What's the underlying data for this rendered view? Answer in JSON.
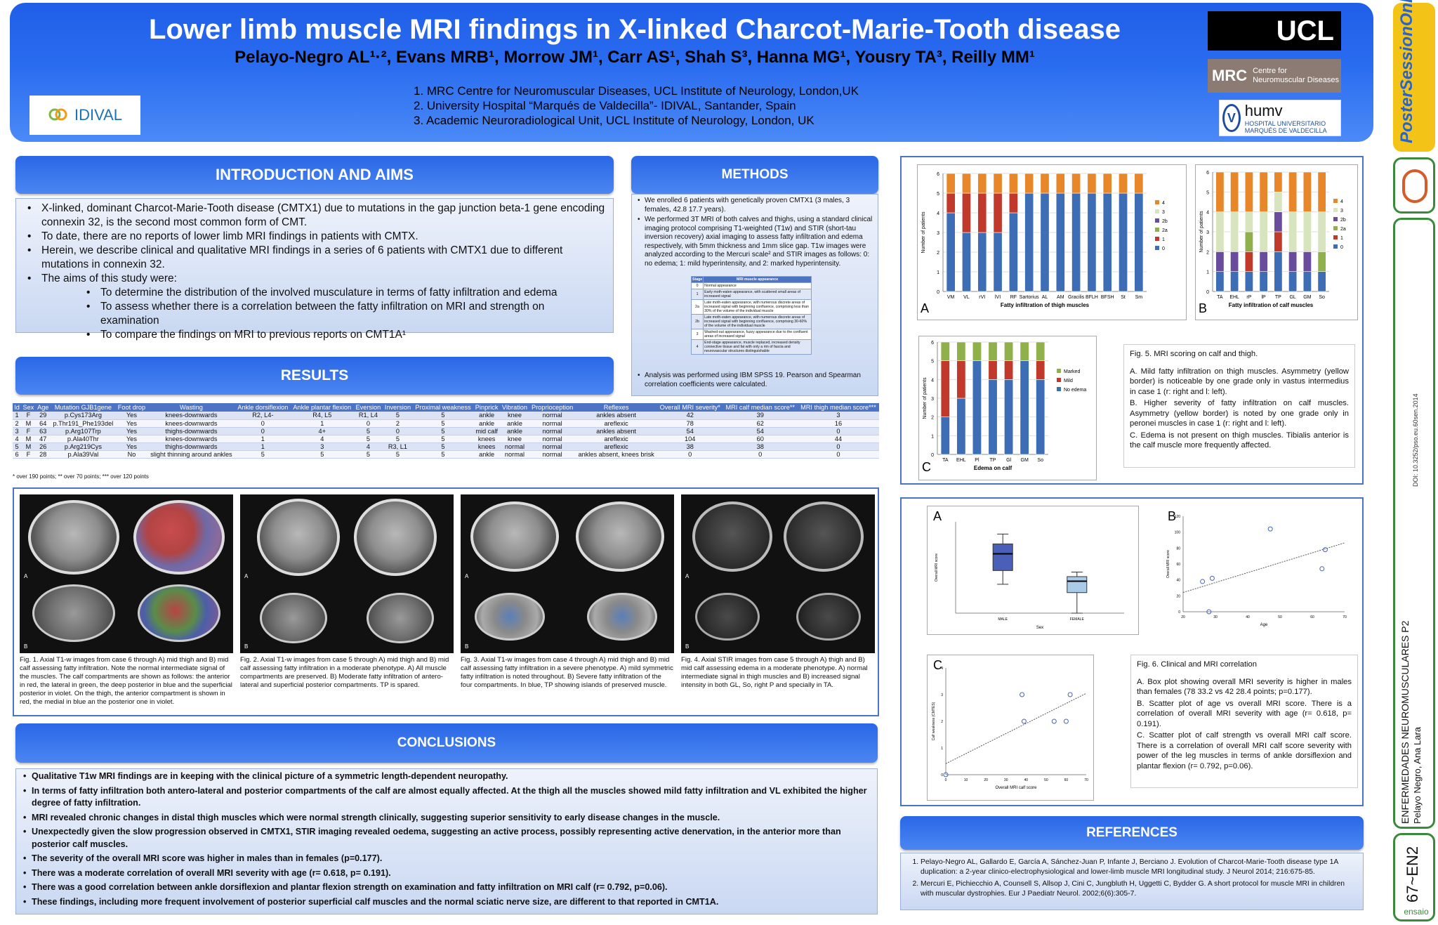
{
  "header": {
    "title": "Lower limb muscle MRI findings in X-linked Charcot-Marie-Tooth disease",
    "authors": "Pelayo-Negro AL¹·², Evans MRB¹, Morrow JM¹, Carr AS¹, Shah S³, Hanna MG¹, Yousry TA³, Reilly MM¹",
    "affiliations": [
      "1.  MRC Centre for Neuromuscular Diseases, UCL Institute of Neurology, London,UK",
      "2.  University Hospital “Marqués de Valdecilla”- IDIVAL, Santander, Spain",
      "3.  Academic Neuroradiological Unit, UCL Institute of Neurology, London, UK"
    ],
    "logo_idival": "IDIVAL",
    "logo_ucl": "UCL",
    "logo_mrc": "MRC",
    "logo_mrc_sub": "Centre for Neuromuscular Diseases",
    "logo_humv": "humv",
    "logo_humv_sub": "HOSPITAL UNIVERSITARIO MARQUÉS DE VALDECILLA"
  },
  "rail": {
    "brand": "PosterSessionOnline",
    "doi": "DOI: 10.3252/pso.eu.60sen.2014",
    "session": "ENFERMEDADES NEUROMUSCULARES P2",
    "author": "Pelayo Negro, Ana Lara",
    "code": "67~EN2",
    "badge": "ensaio"
  },
  "intro": {
    "heading": "INTRODUCTION AND AIMS",
    "bullets": [
      "X-linked, dominant Charcot-Marie-Tooth disease (CMTX1) due to mutations in the gap junction beta-1 gene encoding connexin 32, is the second most common form of CMT.",
      "To date, there are no reports of lower limb MRI findings in patients with CMTX.",
      "Herein, we describe clinical and qualitative MRI findings in a series of 6 patients  with CMTX1 due to different mutations in connexin 32.",
      "The aims of this study were:"
    ],
    "aims": [
      "To determine the distribution of the involved musculature in terms of fatty infiltration and edema",
      "To assess whether there is a correlation between the fatty infiltration on MRI and strength  on examination",
      "To compare the findings on MRI to previous reports on CMT1A¹"
    ]
  },
  "methods": {
    "heading": "METHODS",
    "p1": "We enrolled 6 patients with genetically proven CMTX1 (3 males, 3 females, 42.8  17.7 years).",
    "p2": "We performed 3T MRI of both calves and thighs, using a standard clinical imaging protocol comprising T1-weighted (T1w) and STIR (short-tau inversion recovery) axial imaging to assess fatty infiltration and edema respectively, with 5mm thickness and 1mm slice gap.  T1w images were analyzed according to the Mercuri scale² and STIR images as follows: 0: no edema; 1: mild hyperintensity, and  2: marked hyperintensity.",
    "table_head": [
      "Stage",
      "MRI muscle appearance"
    ],
    "table_rows": [
      [
        "0",
        "Normal appearance"
      ],
      [
        "1",
        "Early moth-eaten appearance, with scattered small areas of increased signal"
      ],
      [
        "2a",
        "Late moth-eaten appearance, with numerous discrete areas of increased signal with beginning confluence, comprising less than 30% of the volume of the individual muscle"
      ],
      [
        "2b",
        "Late moth-eaten appearance, with numerous discrete areas of increased signal with beginning confluence, comprising 30-60% of the volume of the individual muscle"
      ],
      [
        "3",
        "Washed-out appearance, fuzzy appearance due to the confluent areas of increased signal"
      ],
      [
        "4",
        "End-stage appearance, muscle replaced, increased density connective tissue and fat with only a rim of fascia and neurovascular structures distinguishable"
      ]
    ],
    "p3": "Analysis was performed using IBM SPSS 19. Pearson and Spearman correlation coefficients were calculated."
  },
  "results": {
    "heading": "RESULTS",
    "columns": [
      "Id",
      "Sex",
      "Age",
      "Mutation GJB1gene",
      "Foot drop",
      "Wasting",
      "Ankle dorsiflexion",
      "Ankle plantar flexion",
      "Eversion",
      "Inversion",
      "Proximal weakness",
      "Pinprick",
      "Vibration",
      "Proprioception",
      "Reflexes",
      "Overall MRI severity*",
      "MRI calf median score**",
      "MRI thigh median score***"
    ],
    "rows": [
      [
        "1",
        "F",
        "29",
        "p.Cys173Arg",
        "Yes",
        "knees-downwards",
        "R2, L4-",
        "R4, L5",
        "R1, L4",
        "5",
        "5",
        "ankle",
        "knee",
        "normal",
        "ankles absent",
        "42",
        "39",
        "3"
      ],
      [
        "2",
        "M",
        "64",
        "p.Thr191_Phe193del",
        "Yes",
        "knees-downwards",
        "0",
        "1",
        "0",
        "2",
        "5",
        "ankle",
        "ankle",
        "normal",
        "areflexic",
        "78",
        "62",
        "16"
      ],
      [
        "3",
        "F",
        "63",
        "p.Arg107Trp",
        "Yes",
        "thighs-downwards",
        "0",
        "4+",
        "5",
        "0",
        "5",
        "mid calf",
        "ankle",
        "normal",
        "ankles absent",
        "54",
        "54",
        "0"
      ],
      [
        "4",
        "M",
        "47",
        "p.Ala40Thr",
        "Yes",
        "knees-downwards",
        "1",
        "4",
        "5",
        "5",
        "5",
        "knees",
        "knee",
        "normal",
        "areflexic",
        "104",
        "60",
        "44"
      ],
      [
        "5",
        "M",
        "26",
        "p.Arg219Cys",
        "Yes",
        "thighs-downwards",
        "1",
        "3",
        "4",
        "R3, L1",
        "5",
        "knees",
        "normal",
        "normal",
        "areflexic",
        "38",
        "38",
        "0"
      ],
      [
        "6",
        "F",
        "28",
        "p.Ala39Val",
        "No",
        "slight thinning around ankles",
        "5",
        "5",
        "5",
        "5",
        "5",
        "ankle",
        "normal",
        "normal",
        "ankles absent, knees brisk",
        "0",
        "0",
        "0"
      ]
    ],
    "footnote": "* over 190 points; ** over 70 points; *** over 120 points"
  },
  "figures": {
    "fig1": "Fig. 1. Axial T1-w images from case 6 through A) mid thigh and B) mid calf assessing fatty infiltration. Note the normal intermediate signal of the muscles. The calf compartments are shown as follows: the anterior in red, the lateral in green, the deep posterior in blue and the superficial posterior in violet. On the thigh, the anterior compartment is shown in red, the medial in blue an the posterior one in violet.",
    "fig2": "Fig. 2. Axial T1-w images from case 5 through A) mid thigh and B) mid calf assessing fatty infiltration in a moderate phenotype. A) All muscle compartments are preserved. B) Moderate fatty infiltration of antero-lateral and superficial posterior compartments. TP is spared.",
    "fig3": "Fig. 3. Axial T1-w images from case 4 through A) mid thigh and B) mid calf assessing fatty infiltration in a severe phenotype. A) mild symmetric fatty infiltration is noted throughout. B) Severe fatty infiltration of the four compartments. In blue, TP showing islands of preserved muscle.",
    "fig4": "Fig. 4. Axial STIR images from case 5 through A) thigh and B) mid calf assessing edema in a moderate phenotype. A) normal intermediate signal in thigh muscles and B) increased signal intensity in both GL, So, right P and specially in TA.",
    "label_a": "A",
    "label_b": "B"
  },
  "conclusions": {
    "heading": "CONCLUSIONS",
    "items": [
      "Qualitative T1w MRI findings are in keeping with the clinical picture of a symmetric length-dependent neuropathy.",
      "In terms of fatty infiltration both antero-lateral and posterior compartments of the calf are almost equally affected. At the thigh all the muscles showed mild fatty infiltration and VL  exhibited the higher degree of fatty infiltration.",
      "MRI revealed chronic changes in distal thigh muscles which were normal strength clinically, suggesting superior sensitivity to early disease changes in the muscle.",
      "Unexpectedly given the slow progression observed in CMTX1, STIR imaging revealed oedema, suggesting an active process, possibly representing active denervation, in the anterior more than posterior calf muscles.",
      "The severity of the overall MRI score was  higher in males than in females (p=0.177).",
      "There was a moderate correlation of overall MRI severity with age (r= 0.618, p= 0.191).",
      "There was a good correlation between ankle dorsiflexion and plantar flexion strength on examination and fatty infiltration on MRI calf (r= 0.792, p=0.06).",
      "These findings, including more frequent involvement of posterior superficial  calf muscles and the normal sciatic nerve size, are different to that reported in CMT1A."
    ]
  },
  "fig5": {
    "caption_title": "Fig. 5. MRI scoring on calf and thigh.",
    "caption_lines": [
      "A. Mild fatty infiltration on thigh muscles. Asymmetry (yellow border) is noticeable by one grade only in vastus  intermedius in case 1 (r: right and l: left).",
      "B. Higher severity of fatty infiltration on calf muscles. Asymmetry (yellow border) is noted by one grade only in peronei muscles in case 1 (r: right and l: left).",
      "C. Edema is not present on thigh muscles. Tibialis anterior is the calf muscle more frequently affected."
    ],
    "label_a": "A",
    "label_b": "B",
    "label_c": "C"
  },
  "fig6": {
    "caption_title": "Fig. 6. Clinical  and MRI correlation",
    "caption_lines": [
      "A. Box plot showing overall MRI severity is higher in males than females (78  33.2 vs 42  28.4 points; p=0.177).",
      "B. Scatter plot of age vs overall MRI score.  There is a correlation of overall MRI severity with age (r= 0.618, p= 0.191).",
      "C. Scatter plot of calf strength vs overall MRI calf score. There is a correlation of overall MRI calf score severity with power of the leg muscles in terms of ankle dorsiflexion and plantar flexion (r= 0.792, p=0.06)."
    ],
    "label_a": "A",
    "label_b": "B",
    "label_c": "C"
  },
  "references": {
    "heading": "REFERENCES",
    "items": [
      "Pelayo-Negro AL, Gallardo E, García A, Sánchez-Juan P, Infante J, Berciano J. Evolution of Charcot-Marie-Tooth disease type 1A duplication: a 2-year clinico-electrophysiological and lower-limb muscle MRI longitudinal study. J Neurol 2014; 216:675-85.",
      "Mercuri E, Pichiecchio A, Counsell S, Allsop J, Cini C, Jungbluth H, Uggetti C, Bydder G. A short protocol for muscle MRI in children with muscular dystrophies. Eur J Paediatr Neurol. 2002;6(6):305-7."
    ]
  },
  "chart_data": [
    {
      "type": "bar",
      "stacked": true,
      "xlabel": "Fatty infiltration of  thigh muscles",
      "ylabel": "Number of patients",
      "ylim": [
        0,
        6
      ],
      "categories": [
        "VM",
        "VL",
        "rVI",
        "lVI",
        "RF",
        "Sartorius",
        "AL",
        "AM",
        "Gracilis",
        "BFLH",
        "BFSH",
        "St",
        "Sm"
      ],
      "series": [
        {
          "name": "0",
          "values": [
            4,
            3,
            3,
            3,
            4,
            5,
            5,
            5,
            5,
            5,
            5,
            5,
            5
          ]
        },
        {
          "name": "1",
          "values": [
            1,
            2,
            2,
            2,
            1,
            0,
            0,
            0,
            0,
            0,
            0,
            0,
            0
          ]
        },
        {
          "name": "2a",
          "values": [
            0,
            0,
            0,
            0,
            0,
            0,
            0,
            0,
            0,
            0,
            0,
            0,
            0
          ]
        },
        {
          "name": "2b",
          "values": [
            0,
            0,
            0,
            0,
            0,
            0,
            0,
            0,
            0,
            0,
            0,
            0,
            0
          ]
        },
        {
          "name": "3",
          "values": [
            0,
            0,
            0,
            0,
            0,
            0,
            0,
            0,
            0,
            0,
            0,
            0,
            0
          ]
        },
        {
          "name": "4",
          "values": [
            1,
            1,
            1,
            1,
            1,
            1,
            1,
            1,
            1,
            1,
            1,
            1,
            1
          ]
        }
      ],
      "colors": [
        "#3d6db5",
        "#c0392b",
        "#8fb04a",
        "#6a4c9c",
        "#d7e4bd",
        "#e8862a"
      ]
    },
    {
      "type": "bar",
      "stacked": true,
      "xlabel": "Fatty infiltration of calf muscles",
      "ylabel": "Number of patients",
      "ylim": [
        0,
        6
      ],
      "categories": [
        "TA",
        "EHL",
        "rP",
        "lP",
        "TP",
        "GL",
        "GM",
        "So"
      ],
      "series": [
        {
          "name": "0",
          "values": [
            1,
            1,
            1,
            1,
            2,
            1,
            1,
            1
          ]
        },
        {
          "name": "1",
          "values": [
            0,
            0,
            1,
            0,
            1,
            0,
            0,
            0
          ]
        },
        {
          "name": "2a",
          "values": [
            0,
            0,
            1,
            0,
            0,
            0,
            0,
            1
          ]
        },
        {
          "name": "2b",
          "values": [
            1,
            1,
            0,
            1,
            1,
            1,
            1,
            0
          ]
        },
        {
          "name": "3",
          "values": [
            2,
            2,
            1,
            2,
            1,
            2,
            2,
            2
          ]
        },
        {
          "name": "4",
          "values": [
            2,
            2,
            2,
            2,
            1,
            2,
            2,
            2
          ]
        }
      ],
      "colors": [
        "#3d6db5",
        "#c0392b",
        "#8fb04a",
        "#6a4c9c",
        "#d7e4bd",
        "#e8862a"
      ]
    },
    {
      "type": "bar",
      "stacked": true,
      "xlabel": "Edema on calf",
      "ylabel": "Number of patients",
      "ylim": [
        0,
        6
      ],
      "categories": [
        "TA",
        "EHL",
        "Pl",
        "TP",
        "Gl",
        "GM",
        "So"
      ],
      "series": [
        {
          "name": "No edema",
          "values": [
            2,
            3,
            5,
            4,
            4,
            5,
            4
          ]
        },
        {
          "name": "Mild",
          "values": [
            3,
            2,
            0,
            1,
            1,
            0,
            1
          ]
        },
        {
          "name": "Marked",
          "values": [
            1,
            1,
            1,
            1,
            1,
            1,
            1
          ]
        }
      ],
      "colors": [
        "#3d6db5",
        "#c0392b",
        "#8fb04a"
      ]
    },
    {
      "type": "box",
      "xlabel": "Sex",
      "ylabel": "Overall MRI score",
      "categories": [
        "MALE",
        "FEMALE"
      ],
      "boxes": [
        {
          "min": 38,
          "q1": 56,
          "median": 78,
          "q3": 91,
          "max": 104
        },
        {
          "min": 0,
          "q1": 27,
          "median": 42,
          "q3": 48,
          "max": 54
        }
      ],
      "ylim": [
        0,
        120
      ]
    },
    {
      "type": "scatter",
      "xlabel": "Age",
      "ylabel": "Overall MRI score",
      "xlim": [
        20,
        70
      ],
      "ylim": [
        0,
        120
      ],
      "x": [
        29,
        64,
        63,
        47,
        26,
        28
      ],
      "y": [
        42,
        78,
        54,
        104,
        38,
        0
      ],
      "trendline": true
    },
    {
      "type": "scatter",
      "xlabel": "Overall MRI calf score",
      "ylabel": "Calf weakness (CMTES)",
      "xlim": [
        0,
        70
      ],
      "ylim": [
        0,
        4
      ],
      "x": [
        0,
        38,
        39,
        54,
        60,
        62
      ],
      "y": [
        0,
        3,
        2,
        2,
        2,
        3
      ],
      "trendline": true
    }
  ]
}
